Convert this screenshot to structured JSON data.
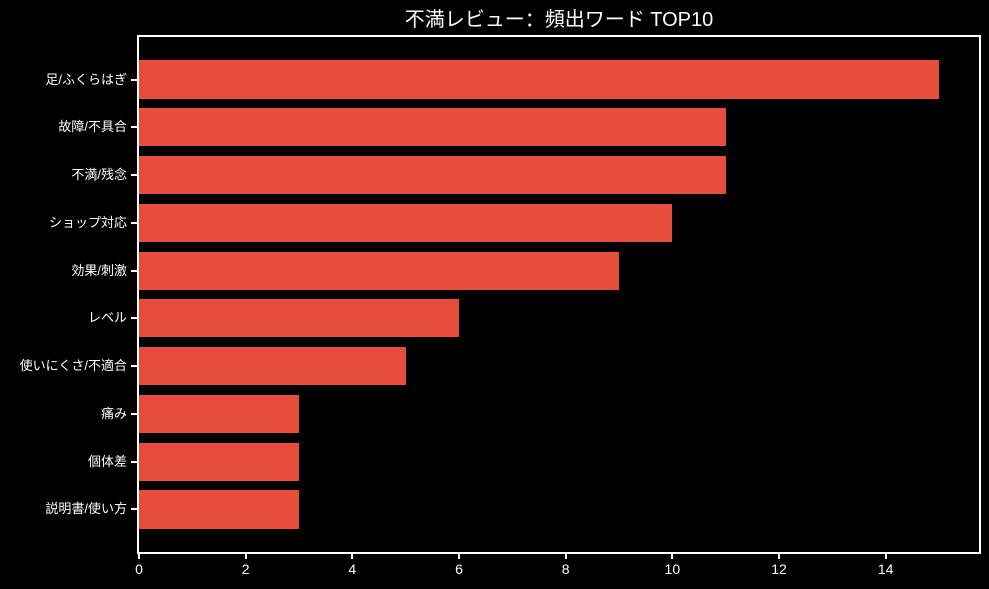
{
  "chart_data": {
    "type": "bar",
    "orientation": "horizontal",
    "title": "不満レビュー：頻出ワード TOP10",
    "categories": [
      "足/ふくらはぎ",
      "故障/不具合",
      "不満/残念",
      "ショップ対応",
      "効果/刺激",
      "レベル",
      "使いにくさ/不適合",
      "痛み",
      "個体差",
      "説明書/使い方"
    ],
    "values": [
      15,
      11,
      11,
      10,
      9,
      6,
      5,
      3,
      3,
      3
    ],
    "xlabel": "",
    "ylabel": "",
    "xlim": [
      0,
      15.75
    ],
    "x_ticks": [
      0,
      2,
      4,
      6,
      8,
      10,
      12,
      14
    ],
    "grid": false,
    "legend": "none",
    "colors": {
      "background": "#000000",
      "bar": "#e74c3c",
      "text": "#ffffff",
      "axis": "#ffffff"
    }
  }
}
